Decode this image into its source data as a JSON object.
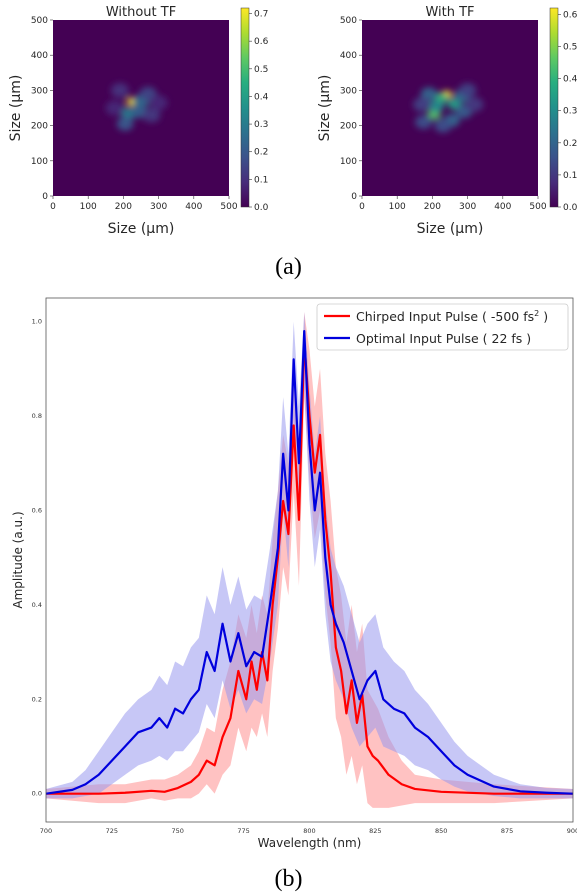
{
  "figure": {
    "caption_a": "(a)",
    "caption_b": "(b)"
  },
  "chart_data": [
    {
      "type": "heatmap",
      "title": "Without TF",
      "xlabel": "Size (μm)",
      "ylabel": "Size (μm)",
      "xlim": [
        0,
        500
      ],
      "ylim": [
        0,
        500
      ],
      "x_ticks": [
        0,
        100,
        200,
        300,
        400,
        500
      ],
      "y_ticks": [
        0,
        100,
        200,
        300,
        400,
        500
      ],
      "colorbar": {
        "min": 0.0,
        "max": 0.72,
        "ticks": [
          "0.0",
          "0.1",
          "0.2",
          "0.3",
          "0.4",
          "0.5",
          "0.6",
          "0.7"
        ],
        "colormap": "viridis"
      },
      "spots": [
        {
          "x": 225,
          "y": 268,
          "value": 0.7
        },
        {
          "x": 250,
          "y": 270,
          "value": 0.25
        },
        {
          "x": 215,
          "y": 235,
          "value": 0.3
        },
        {
          "x": 245,
          "y": 240,
          "value": 0.22
        },
        {
          "x": 205,
          "y": 205,
          "value": 0.2
        },
        {
          "x": 270,
          "y": 290,
          "value": 0.15
        },
        {
          "x": 190,
          "y": 300,
          "value": 0.1
        },
        {
          "x": 280,
          "y": 230,
          "value": 0.12
        },
        {
          "x": 175,
          "y": 250,
          "value": 0.08
        },
        {
          "x": 300,
          "y": 265,
          "value": 0.08
        }
      ]
    },
    {
      "type": "heatmap",
      "title": "With TF",
      "xlabel": "Size (μm)",
      "ylabel": "Size (μm)",
      "xlim": [
        0,
        500
      ],
      "ylim": [
        0,
        500
      ],
      "x_ticks": [
        0,
        100,
        200,
        300,
        400,
        500
      ],
      "y_ticks": [
        0,
        100,
        200,
        300,
        400,
        500
      ],
      "colorbar": {
        "min": 0.0,
        "max": 0.62,
        "ticks": [
          "0.0",
          "0.1",
          "0.2",
          "0.3",
          "0.4",
          "0.5",
          "0.6"
        ],
        "colormap": "viridis"
      },
      "spots": [
        {
          "x": 240,
          "y": 288,
          "value": 0.6
        },
        {
          "x": 225,
          "y": 278,
          "value": 0.4
        },
        {
          "x": 205,
          "y": 232,
          "value": 0.45
        },
        {
          "x": 262,
          "y": 262,
          "value": 0.35
        },
        {
          "x": 212,
          "y": 255,
          "value": 0.3
        },
        {
          "x": 285,
          "y": 285,
          "value": 0.22
        },
        {
          "x": 190,
          "y": 290,
          "value": 0.2
        },
        {
          "x": 255,
          "y": 215,
          "value": 0.2
        },
        {
          "x": 290,
          "y": 240,
          "value": 0.18
        },
        {
          "x": 175,
          "y": 210,
          "value": 0.15
        },
        {
          "x": 300,
          "y": 300,
          "value": 0.12
        },
        {
          "x": 230,
          "y": 200,
          "value": 0.15
        },
        {
          "x": 320,
          "y": 260,
          "value": 0.1
        },
        {
          "x": 170,
          "y": 260,
          "value": 0.12
        }
      ]
    },
    {
      "type": "line",
      "title": "",
      "xlabel": "Wavelength (nm)",
      "ylabel": "Amplitude (a.u.)",
      "xlim": [
        700,
        900
      ],
      "ylim": [
        -0.06,
        1.05
      ],
      "x_ticks": [
        700,
        725,
        750,
        775,
        800,
        825,
        850,
        875,
        900
      ],
      "y_ticks": [
        "0.0",
        "0.2",
        "0.4",
        "0.6",
        "0.8",
        "1.0"
      ],
      "grid": false,
      "legend_position": "top-right",
      "series": [
        {
          "name": "Chirped Input Pulse ( -500 fs² )",
          "legend_main": "Chirped Input Pulse ( -500 fs",
          "legend_sup": "2",
          "legend_tail": " )",
          "color": "#ff0000",
          "band_color": "#ff9999",
          "x": [
            700,
            720,
            730,
            740,
            745,
            750,
            755,
            758,
            761,
            764,
            767,
            770,
            773,
            776,
            778,
            780,
            782,
            784,
            786,
            788,
            790,
            792,
            794,
            796,
            798,
            800,
            802,
            804,
            806,
            808,
            810,
            812,
            814,
            816,
            818,
            820,
            822,
            824,
            826,
            830,
            835,
            840,
            850,
            870,
            900
          ],
          "y": [
            0.0,
            0.0,
            0.002,
            0.006,
            0.004,
            0.012,
            0.025,
            0.04,
            0.07,
            0.06,
            0.12,
            0.16,
            0.26,
            0.2,
            0.28,
            0.22,
            0.3,
            0.24,
            0.4,
            0.5,
            0.62,
            0.55,
            0.78,
            0.58,
            0.96,
            0.8,
            0.68,
            0.76,
            0.58,
            0.47,
            0.31,
            0.26,
            0.17,
            0.24,
            0.15,
            0.21,
            0.1,
            0.08,
            0.07,
            0.04,
            0.02,
            0.01,
            0.004,
            0.0,
            0.0
          ],
          "band_lower": [
            -0.01,
            -0.02,
            -0.02,
            -0.01,
            -0.015,
            -0.01,
            -0.01,
            0.0,
            0.02,
            0.0,
            0.04,
            0.06,
            0.14,
            0.09,
            0.14,
            0.12,
            0.17,
            0.12,
            0.26,
            0.35,
            0.48,
            0.42,
            0.64,
            0.44,
            0.84,
            0.66,
            0.54,
            0.6,
            0.42,
            0.32,
            0.16,
            0.12,
            0.04,
            0.08,
            0.02,
            0.06,
            -0.02,
            -0.03,
            -0.03,
            -0.03,
            -0.025,
            -0.02,
            -0.02,
            -0.02,
            -0.01
          ],
          "band_upper": [
            0.01,
            0.02,
            0.02,
            0.03,
            0.03,
            0.04,
            0.06,
            0.09,
            0.14,
            0.13,
            0.22,
            0.28,
            0.38,
            0.33,
            0.4,
            0.34,
            0.42,
            0.38,
            0.54,
            0.64,
            0.76,
            0.7,
            0.9,
            0.72,
            1.02,
            0.94,
            0.82,
            0.9,
            0.72,
            0.62,
            0.48,
            0.42,
            0.32,
            0.4,
            0.3,
            0.36,
            0.22,
            0.2,
            0.18,
            0.12,
            0.07,
            0.04,
            0.03,
            0.02,
            0.01
          ]
        },
        {
          "name": "Optimal Input Pulse ( 22 fs )",
          "legend_main": "Optimal Input Pulse ( 22 fs )",
          "legend_sup": "",
          "legend_tail": "",
          "color": "#0000dd",
          "band_color": "#9999ee",
          "x": [
            700,
            710,
            715,
            720,
            725,
            730,
            735,
            740,
            743,
            746,
            749,
            752,
            755,
            758,
            761,
            764,
            767,
            770,
            773,
            776,
            779,
            782,
            785,
            788,
            790,
            792,
            794,
            796,
            798,
            800,
            802,
            804,
            806,
            808,
            810,
            813,
            816,
            819,
            822,
            825,
            828,
            832,
            836,
            840,
            845,
            850,
            855,
            860,
            870,
            880,
            890,
            900
          ],
          "y": [
            0.0,
            0.008,
            0.02,
            0.04,
            0.07,
            0.1,
            0.13,
            0.14,
            0.16,
            0.14,
            0.18,
            0.17,
            0.2,
            0.22,
            0.3,
            0.26,
            0.36,
            0.28,
            0.34,
            0.27,
            0.3,
            0.29,
            0.4,
            0.52,
            0.72,
            0.6,
            0.92,
            0.7,
            0.98,
            0.74,
            0.6,
            0.68,
            0.5,
            0.4,
            0.36,
            0.32,
            0.26,
            0.2,
            0.24,
            0.26,
            0.2,
            0.18,
            0.17,
            0.14,
            0.12,
            0.09,
            0.06,
            0.04,
            0.015,
            0.005,
            0.002,
            0.0
          ],
          "band_lower": [
            -0.01,
            -0.01,
            -0.005,
            0.0,
            0.02,
            0.04,
            0.06,
            0.07,
            0.08,
            0.07,
            0.09,
            0.09,
            0.11,
            0.13,
            0.19,
            0.16,
            0.24,
            0.18,
            0.22,
            0.17,
            0.2,
            0.19,
            0.28,
            0.4,
            0.6,
            0.48,
            0.8,
            0.58,
            0.86,
            0.62,
            0.48,
            0.56,
            0.38,
            0.28,
            0.24,
            0.2,
            0.14,
            0.1,
            0.12,
            0.14,
            0.1,
            0.09,
            0.08,
            0.06,
            0.05,
            0.03,
            0.015,
            0.005,
            -0.005,
            -0.01,
            -0.01,
            -0.01
          ],
          "band_upper": [
            0.01,
            0.025,
            0.05,
            0.09,
            0.13,
            0.17,
            0.2,
            0.22,
            0.25,
            0.23,
            0.28,
            0.27,
            0.31,
            0.33,
            0.42,
            0.38,
            0.48,
            0.4,
            0.46,
            0.39,
            0.42,
            0.41,
            0.52,
            0.64,
            0.84,
            0.72,
            1.0,
            0.82,
            1.02,
            0.86,
            0.72,
            0.8,
            0.62,
            0.52,
            0.48,
            0.44,
            0.38,
            0.32,
            0.36,
            0.38,
            0.31,
            0.28,
            0.26,
            0.22,
            0.19,
            0.15,
            0.11,
            0.08,
            0.04,
            0.02,
            0.012,
            0.01
          ]
        }
      ]
    }
  ]
}
